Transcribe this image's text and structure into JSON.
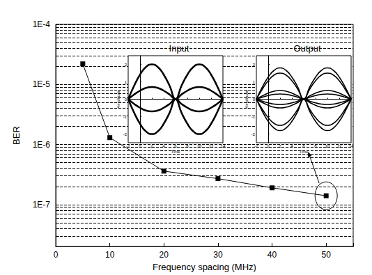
{
  "chart_data": [
    {
      "type": "line",
      "x_label": "Frequency spacing (MHz)",
      "y_label": "BER",
      "x": [
        5,
        10,
        20,
        30,
        40,
        50
      ],
      "values": [
        2.2e-05,
        1.3e-06,
        3.6e-07,
        2.7e-07,
        1.9e-07,
        1.4e-07
      ],
      "color": "#000000",
      "marker": "square",
      "xlim": [
        0,
        55
      ],
      "xticks": [
        0,
        10,
        20,
        30,
        40,
        50
      ],
      "ylim": [
        2e-08,
        0.0001
      ],
      "yticks": [
        {
          "value": 1e-07,
          "label": "1E-7"
        },
        {
          "value": 1e-06,
          "label": "1E-6"
        },
        {
          "value": 1e-05,
          "label": "1E-5"
        },
        {
          "value": 0.0001,
          "label": "1E-4"
        }
      ],
      "log": "y",
      "grid": true
    },
    {
      "type": "line",
      "title": "Input",
      "x_label": "Time",
      "y_label": "Amplitude",
      "x": [
        -2,
        -1,
        0,
        1,
        2,
        3,
        4,
        5,
        6,
        7,
        8,
        9,
        10,
        11,
        12,
        13,
        14
      ],
      "series": [
        {
          "color": "#000000",
          "values": [
            0,
            0.77,
            1.41,
            1.85,
            2,
            1.85,
            1.41,
            0.77,
            0,
            0.77,
            1.41,
            1.85,
            2,
            1.85,
            1.41,
            0.77,
            0
          ]
        },
        {
          "color": "#000000",
          "values": [
            0,
            -0.77,
            -1.41,
            -1.85,
            -2,
            -1.85,
            -1.41,
            -0.77,
            0,
            -0.77,
            -1.41,
            -1.85,
            -2,
            -1.85,
            -1.41,
            -0.77,
            0
          ]
        },
        {
          "color": "#000000",
          "values": [
            0,
            0.27,
            0.49,
            0.65,
            0.7,
            0.65,
            0.49,
            0.27,
            0,
            0.27,
            0.49,
            0.65,
            0.7,
            0.65,
            0.49,
            0.27,
            0
          ]
        },
        {
          "color": "#000000",
          "values": [
            0,
            -0.27,
            -0.49,
            -0.65,
            -0.7,
            -0.65,
            -0.49,
            -0.27,
            0,
            -0.27,
            -0.49,
            -0.65,
            -0.7,
            -0.65,
            -0.49,
            -0.27,
            0
          ]
        }
      ],
      "xlim": [
        -2,
        14
      ],
      "xticks": [
        -2,
        0,
        2,
        4,
        6,
        8,
        10,
        12,
        14
      ],
      "ylim": [
        -2.5,
        2.5
      ],
      "yticks": [
        -2,
        -1,
        0,
        1,
        2
      ],
      "grid": false
    },
    {
      "type": "line",
      "title": "Output",
      "x_label": "Time",
      "y_label": "Amplitude",
      "x": [
        -2,
        -1,
        0,
        1,
        2,
        3,
        4,
        5,
        6,
        7,
        8,
        9,
        10,
        11,
        12,
        13,
        14
      ],
      "series": [
        {
          "color": "#000000",
          "values": [
            0,
            0.69,
            1.27,
            1.66,
            1.8,
            1.66,
            1.27,
            0.69,
            0,
            0.69,
            1.27,
            1.66,
            1.8,
            1.66,
            1.27,
            0.69,
            0
          ]
        },
        {
          "color": "#000000",
          "values": [
            0,
            0.57,
            1.06,
            1.39,
            1.5,
            1.39,
            1.06,
            0.57,
            0,
            0.57,
            1.06,
            1.39,
            1.5,
            1.39,
            1.06,
            0.57,
            0
          ]
        },
        {
          "color": "#000000",
          "values": [
            0,
            -0.69,
            -1.27,
            -1.66,
            -1.8,
            -1.66,
            -1.27,
            -0.69,
            0,
            -0.69,
            -1.27,
            -1.66,
            -1.8,
            -1.66,
            -1.27,
            -0.69,
            0
          ]
        },
        {
          "color": "#000000",
          "values": [
            0,
            -0.57,
            -1.06,
            -1.39,
            -1.5,
            -1.39,
            -1.06,
            -0.57,
            0,
            -0.57,
            -1.06,
            -1.39,
            -1.5,
            -1.39,
            -1.06,
            -0.57,
            0
          ]
        },
        {
          "color": "#000000",
          "values": [
            0,
            0.19,
            0.35,
            0.46,
            0.5,
            0.46,
            0.35,
            0.19,
            0,
            0.19,
            0.35,
            0.46,
            0.5,
            0.46,
            0.35,
            0.19,
            0
          ]
        },
        {
          "color": "#000000",
          "values": [
            0,
            0.11,
            0.21,
            0.28,
            0.3,
            0.28,
            0.21,
            0.11,
            0,
            0.11,
            0.21,
            0.28,
            0.3,
            0.28,
            0.21,
            0.11,
            0
          ]
        },
        {
          "color": "#000000",
          "values": [
            0,
            -0.19,
            -0.35,
            -0.46,
            -0.5,
            -0.46,
            -0.35,
            -0.19,
            0,
            -0.19,
            -0.35,
            -0.46,
            -0.5,
            -0.46,
            -0.35,
            -0.19,
            0
          ]
        },
        {
          "color": "#000000",
          "values": [
            0,
            -0.11,
            -0.21,
            -0.28,
            -0.3,
            -0.28,
            -0.21,
            -0.11,
            0,
            -0.11,
            -0.21,
            -0.28,
            -0.3,
            -0.28,
            -0.21,
            -0.11,
            0
          ]
        }
      ],
      "xlim": [
        -2,
        14
      ],
      "xticks": [
        -2,
        0,
        2,
        4,
        6,
        8,
        10,
        12,
        14
      ],
      "ylim": [
        -2.5,
        2.5
      ],
      "yticks": [
        -2,
        -1,
        0,
        1,
        2
      ],
      "grid": false
    }
  ]
}
